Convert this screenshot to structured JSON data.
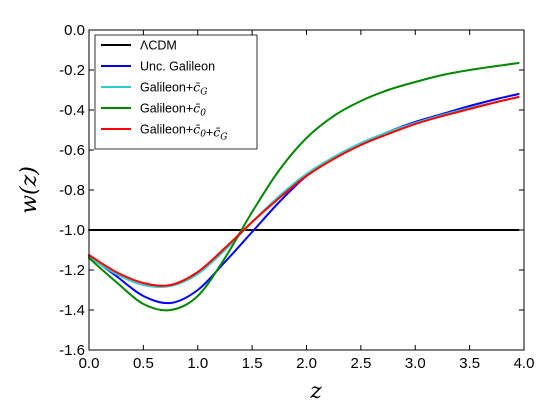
{
  "chart_data": {
    "type": "line",
    "xlabel": "z",
    "ylabel": "w(z)",
    "xlim": [
      0,
      4.0
    ],
    "ylim": [
      -1.6,
      0.0
    ],
    "x_ticks": [
      0.0,
      0.5,
      1.0,
      1.5,
      2.0,
      2.5,
      3.0,
      3.5,
      4.0
    ],
    "x_tick_labels": [
      "0.0",
      "0.5",
      "1.0",
      "1.5",
      "2.0",
      "2.5",
      "3.0",
      "3.5",
      "4.0"
    ],
    "y_ticks": [
      0.0,
      -0.2,
      -0.4,
      -0.6,
      -0.8,
      -1.0,
      -1.2,
      -1.4,
      -1.6
    ],
    "y_tick_labels": [
      "0.0",
      "-0.2",
      "-0.4",
      "-0.6",
      "-0.8",
      "-1.0",
      "-1.2",
      "-1.4",
      "-1.6"
    ],
    "grid": false,
    "legend_position": "top-left",
    "x": [
      0.0,
      0.25,
      0.5,
      0.75,
      1.0,
      1.25,
      1.5,
      1.75,
      2.0,
      2.25,
      2.5,
      2.75,
      3.0,
      3.25,
      3.5,
      3.75,
      3.95
    ],
    "series": [
      {
        "name": "ΛCDM",
        "color": "#000000",
        "values": [
          -1.0,
          -1.0,
          -1.0,
          -1.0,
          -1.0,
          -1.0,
          -1.0,
          -1.0,
          -1.0,
          -1.0,
          -1.0,
          -1.0,
          -1.0,
          -1.0,
          -1.0,
          -1.0,
          -1.0
        ]
      },
      {
        "name": "Unc. Galileon",
        "color": "#0000ff",
        "values": [
          -1.13,
          -1.23,
          -1.33,
          -1.365,
          -1.3,
          -1.16,
          -1.01,
          -0.86,
          -0.73,
          -0.64,
          -0.57,
          -0.51,
          -0.46,
          -0.42,
          -0.38,
          -0.345,
          -0.32
        ]
      },
      {
        "name": "Galileon+c̄_G",
        "color": "#33cccc",
        "values": [
          -1.135,
          -1.22,
          -1.275,
          -1.28,
          -1.22,
          -1.1,
          -0.96,
          -0.83,
          -0.72,
          -0.635,
          -0.565,
          -0.51,
          -0.465,
          -0.425,
          -0.39,
          -0.36,
          -0.335
        ]
      },
      {
        "name": "Galileon+c̄_0",
        "color": "#008800",
        "values": [
          -1.14,
          -1.26,
          -1.37,
          -1.4,
          -1.33,
          -1.14,
          -0.91,
          -0.7,
          -0.54,
          -0.43,
          -0.355,
          -0.3,
          -0.26,
          -0.225,
          -0.2,
          -0.18,
          -0.165
        ]
      },
      {
        "name": "Galileon+c̄_0+c̄_G",
        "color": "#ff0000",
        "values": [
          -1.125,
          -1.21,
          -1.265,
          -1.275,
          -1.21,
          -1.09,
          -0.96,
          -0.84,
          -0.73,
          -0.645,
          -0.575,
          -0.52,
          -0.47,
          -0.43,
          -0.395,
          -0.36,
          -0.335
        ]
      }
    ]
  }
}
